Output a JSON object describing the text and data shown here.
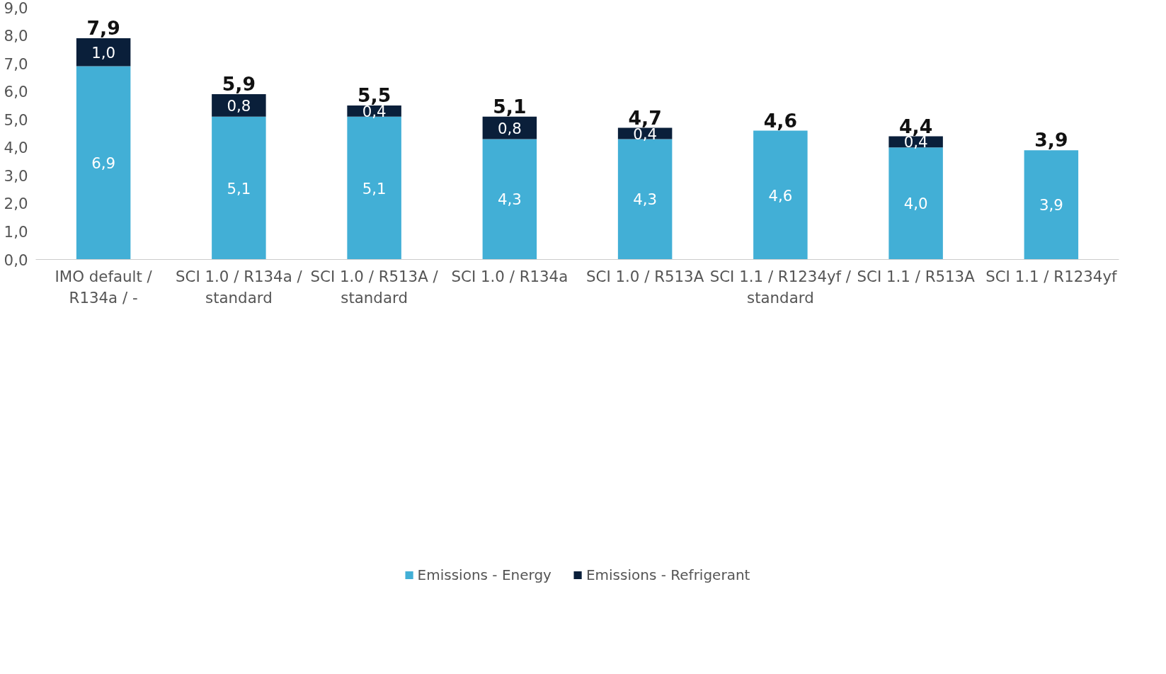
{
  "chart_data": {
    "type": "bar",
    "stacked": true,
    "categories": [
      "IMO default /\nR134a / -",
      "SCI 1.0 / R134a /\nstandard",
      "SCI 1.0 / R513A /\nstandard",
      "SCI 1.0 / R134a",
      "SCI 1.0 / R513A",
      "SCI 1.1 / R1234yf /\nstandard",
      "SCI 1.1 / R513A",
      "SCI 1.1 / R1234yf"
    ],
    "series": [
      {
        "name": "Emissions - Energy",
        "color": "#42afd6",
        "values": [
          6.9,
          5.1,
          5.1,
          4.3,
          4.3,
          4.6,
          4.0,
          3.9
        ],
        "value_labels": [
          "6,9",
          "5,1",
          "5,1",
          "4,3",
          "4,3",
          "4,6",
          "4,0",
          "3,9"
        ]
      },
      {
        "name": "Emissions - Refrigerant",
        "color": "#0a1f3a",
        "values": [
          1.0,
          0.8,
          0.4,
          0.8,
          0.4,
          null,
          0.4,
          null
        ],
        "value_labels": [
          "1,0",
          "0,8",
          "0,4",
          "0,8",
          "0,4",
          null,
          "0,4",
          null
        ]
      }
    ],
    "totals": [
      "7,9",
      "5,9",
      "5,5",
      "5,1",
      "4,7",
      "4,6",
      "4,4",
      "3,9"
    ],
    "ylim": [
      0,
      9.0
    ],
    "yticks": [
      {
        "value": 0,
        "label": "0,0"
      },
      {
        "value": 1,
        "label": "1,0"
      },
      {
        "value": 2,
        "label": "2,0"
      },
      {
        "value": 3,
        "label": "3,0"
      },
      {
        "value": 4,
        "label": "4,0"
      },
      {
        "value": 5,
        "label": "5,0"
      },
      {
        "value": 6,
        "label": "6,0"
      },
      {
        "value": 7,
        "label": "7,0"
      },
      {
        "value": 8,
        "label": "8,0"
      },
      {
        "value": 9,
        "label": "9,0"
      }
    ],
    "grid": false,
    "legend": "bottom"
  }
}
